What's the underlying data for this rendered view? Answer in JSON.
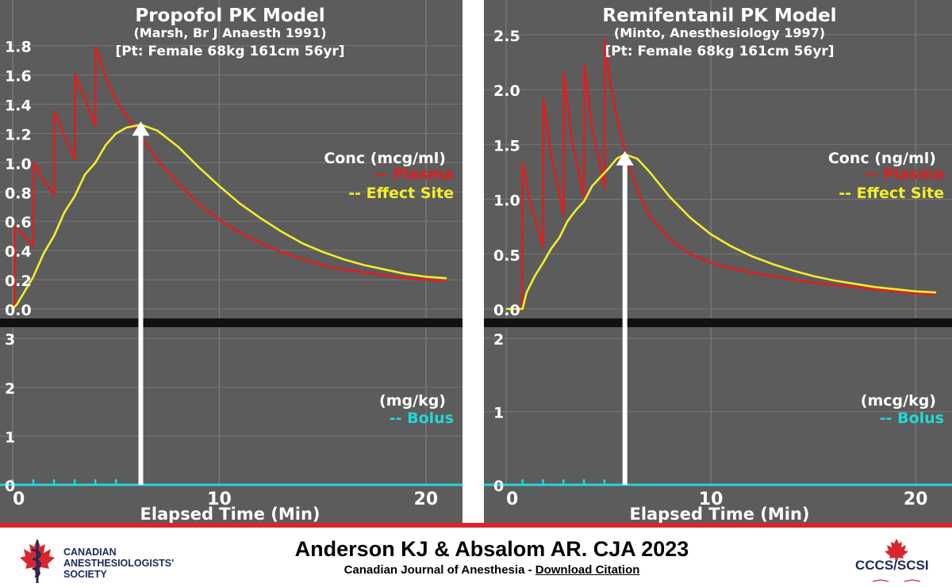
{
  "colors": {
    "panel_bg": "#5c5c5c",
    "grid": "#777777",
    "separator": "#111111",
    "plasma": "#e01e1e",
    "effect": "#f2ee2a",
    "bolus": "#21d8d8",
    "marker": "#ffffff",
    "text": "#ffffff",
    "footer_red": "#d9262c"
  },
  "chart_data": [
    {
      "type": "line",
      "title": "Propofol PK Model",
      "subtitle": "(Marsh, Br J Anaesth 1991)",
      "patient": "[Pt: Female 68kg 161cm 56yr]",
      "upper": {
        "ylim": [
          0,
          1.95
        ],
        "yticks": [
          "0.0",
          "0.2",
          "0.4",
          "0.6",
          "0.8",
          "1.0",
          "1.2",
          "1.4",
          "1.6",
          "1.8"
        ],
        "legend_title": "Conc (mcg/ml)",
        "legend": [
          {
            "prefix": "--",
            "name": "Plasma",
            "color": "#e01e1e"
          },
          {
            "prefix": "--",
            "name": "Effect Site",
            "color": "#f2ee2a"
          }
        ],
        "series": [
          {
            "name": "Plasma",
            "color": "#e01e1e",
            "points": [
              [
                0,
                0
              ],
              [
                0.08,
                0
              ],
              [
                0.1,
                0.56
              ],
              [
                0.45,
                0.52
              ],
              [
                1.0,
                0.43
              ],
              [
                1.02,
                1.0
              ],
              [
                1.5,
                0.88
              ],
              [
                2.0,
                0.78
              ],
              [
                2.02,
                1.35
              ],
              [
                2.6,
                1.15
              ],
              [
                3.0,
                1.02
              ],
              [
                3.02,
                1.6
              ],
              [
                3.6,
                1.4
              ],
              [
                4.0,
                1.25
              ],
              [
                4.02,
                1.79
              ],
              [
                4.6,
                1.55
              ],
              [
                5.0,
                1.43
              ],
              [
                5.6,
                1.3
              ],
              [
                6.2,
                1.18
              ],
              [
                7,
                1.02
              ],
              [
                8,
                0.86
              ],
              [
                9,
                0.72
              ],
              [
                10,
                0.61
              ],
              [
                11,
                0.52
              ],
              [
                12,
                0.45
              ],
              [
                13,
                0.39
              ],
              [
                14,
                0.34
              ],
              [
                15,
                0.3
              ],
              [
                16,
                0.27
              ],
              [
                17,
                0.25
              ],
              [
                18,
                0.23
              ],
              [
                19,
                0.21
              ],
              [
                20,
                0.2
              ],
              [
                21,
                0.19
              ]
            ]
          },
          {
            "name": "Effect Site",
            "color": "#f2ee2a",
            "points": [
              [
                0,
                0
              ],
              [
                0.2,
                0.03
              ],
              [
                0.5,
                0.1
              ],
              [
                1.0,
                0.22
              ],
              [
                1.5,
                0.38
              ],
              [
                2.0,
                0.5
              ],
              [
                2.5,
                0.66
              ],
              [
                3.0,
                0.77
              ],
              [
                3.5,
                0.92
              ],
              [
                4.0,
                1.0
              ],
              [
                4.5,
                1.12
              ],
              [
                5.0,
                1.2
              ],
              [
                5.5,
                1.24
              ],
              [
                6.2,
                1.26
              ],
              [
                7,
                1.22
              ],
              [
                8,
                1.11
              ],
              [
                9,
                0.97
              ],
              [
                10,
                0.84
              ],
              [
                11,
                0.72
              ],
              [
                12,
                0.62
              ],
              [
                13,
                0.53
              ],
              [
                14,
                0.45
              ],
              [
                15,
                0.39
              ],
              [
                16,
                0.34
              ],
              [
                17,
                0.3
              ],
              [
                18,
                0.27
              ],
              [
                19,
                0.24
              ],
              [
                20,
                0.22
              ],
              [
                21,
                0.21
              ]
            ]
          }
        ],
        "marker": {
          "x": 6.2,
          "y": 1.26
        }
      },
      "lower": {
        "ylim": [
          0,
          3.15
        ],
        "yticks": [
          "0",
          "1",
          "2",
          "3"
        ],
        "unit_label": "(mg/kg)",
        "legend": [
          {
            "prefix": "--",
            "name": "Bolus",
            "color": "#21d8d8"
          }
        ],
        "bolus_times": [
          0,
          1,
          2,
          3,
          4,
          5
        ]
      },
      "xlim": [
        0,
        21
      ],
      "xticks": [
        "0",
        "10",
        "20"
      ],
      "xlabel": "Elapsed Time (Min)"
    },
    {
      "type": "line",
      "title": "Remifentanil PK Model",
      "subtitle": "(Minto, Anesthesiology 1997)",
      "patient": "[Pt: Female 68kg 161cm 56yr]",
      "upper": {
        "ylim": [
          0,
          2.6
        ],
        "yticks": [
          "0.0",
          "0.5",
          "1.0",
          "1.5",
          "2.0",
          "2.5"
        ],
        "legend_title": "Conc (ng/ml)",
        "legend": [
          {
            "prefix": "--",
            "name": "Plasma",
            "color": "#e01e1e"
          },
          {
            "prefix": "--",
            "name": "Effect Site",
            "color": "#f2ee2a"
          }
        ],
        "series": [
          {
            "name": "Plasma",
            "color": "#e01e1e",
            "points": [
              [
                0,
                0
              ],
              [
                0.78,
                0
              ],
              [
                0.8,
                1.33
              ],
              [
                1.2,
                0.95
              ],
              [
                1.6,
                0.7
              ],
              [
                1.8,
                0.57
              ],
              [
                1.82,
                1.92
              ],
              [
                2.2,
                1.4
              ],
              [
                2.6,
                1.05
              ],
              [
                2.8,
                0.85
              ],
              [
                2.82,
                2.15
              ],
              [
                3.2,
                1.55
              ],
              [
                3.6,
                1.18
              ],
              [
                3.8,
                1.02
              ],
              [
                3.82,
                2.22
              ],
              [
                4.2,
                1.65
              ],
              [
                4.6,
                1.3
              ],
              [
                4.8,
                1.1
              ],
              [
                4.82,
                2.45
              ],
              [
                5.1,
                2.05
              ],
              [
                5.5,
                1.65
              ],
              [
                6.0,
                1.3
              ],
              [
                6.5,
                1.05
              ],
              [
                7,
                0.85
              ],
              [
                8,
                0.63
              ],
              [
                9,
                0.5
              ],
              [
                10,
                0.42
              ],
              [
                11,
                0.37
              ],
              [
                12,
                0.33
              ],
              [
                13,
                0.3
              ],
              [
                14,
                0.27
              ],
              [
                15,
                0.24
              ],
              [
                16,
                0.22
              ],
              [
                17,
                0.2
              ],
              [
                18,
                0.18
              ],
              [
                19,
                0.16
              ],
              [
                20,
                0.14
              ],
              [
                21,
                0.13
              ]
            ]
          },
          {
            "name": "Effect Site",
            "color": "#f2ee2a",
            "points": [
              [
                0,
                0
              ],
              [
                0.8,
                0
              ],
              [
                1.0,
                0.15
              ],
              [
                1.4,
                0.3
              ],
              [
                1.8,
                0.42
              ],
              [
                2.2,
                0.55
              ],
              [
                2.6,
                0.65
              ],
              [
                3.0,
                0.8
              ],
              [
                3.4,
                0.9
              ],
              [
                3.8,
                0.98
              ],
              [
                4.2,
                1.12
              ],
              [
                4.6,
                1.2
              ],
              [
                5.0,
                1.28
              ],
              [
                5.4,
                1.37
              ],
              [
                5.8,
                1.41
              ],
              [
                6.4,
                1.37
              ],
              [
                7,
                1.25
              ],
              [
                8,
                1.02
              ],
              [
                9,
                0.83
              ],
              [
                10,
                0.68
              ],
              [
                11,
                0.57
              ],
              [
                12,
                0.48
              ],
              [
                13,
                0.41
              ],
              [
                14,
                0.35
              ],
              [
                15,
                0.3
              ],
              [
                16,
                0.26
              ],
              [
                17,
                0.23
              ],
              [
                18,
                0.2
              ],
              [
                19,
                0.18
              ],
              [
                20,
                0.16
              ],
              [
                21,
                0.15
              ]
            ]
          }
        ],
        "marker": {
          "x": 5.8,
          "y": 1.41
        }
      },
      "lower": {
        "ylim": [
          0,
          2.1
        ],
        "yticks": [
          "0",
          "1",
          "2"
        ],
        "unit_label": "(mcg/kg)",
        "legend": [
          {
            "prefix": "--",
            "name": "Bolus",
            "color": "#21d8d8"
          }
        ],
        "bolus_times": [
          0.8,
          1.8,
          2.8,
          3.8,
          4.8
        ]
      },
      "xlim": [
        0,
        21
      ],
      "xticks": [
        "0",
        "10",
        "20"
      ],
      "xlabel": "Elapsed Time (Min)"
    }
  ],
  "footer": {
    "society_lines": [
      "CANADIAN",
      "ANESTHESIOLOGISTS'",
      "SOCIETY"
    ],
    "citation_main": "Anderson KJ & Absalom AR. CJA 2023",
    "journal": "Canadian Journal of Anesthesia",
    "separator": " - ",
    "download_link": "Download Citation",
    "logo_text": "CCCS/SCSI"
  }
}
